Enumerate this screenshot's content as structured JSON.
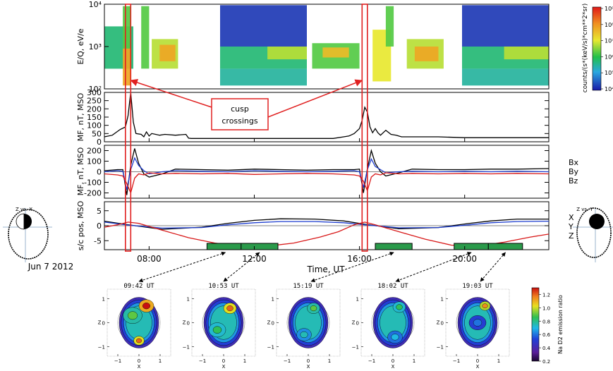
{
  "chart_data": [
    {
      "type": "heatmap",
      "ylabel": "E/Q, eV/e",
      "y_scale": "log",
      "ylim": [
        100,
        10000
      ],
      "yticks": [
        "10⁴",
        "10³",
        "10²"
      ],
      "colorbar_label": "counts/(s*(keV/s)*cm**2*sr)",
      "colorbar_scale": "log",
      "colorbar_ticks": [
        "10⁹",
        "10⁸",
        "10⁷",
        "10⁶",
        "10⁵",
        "10⁴"
      ],
      "cells": [
        {
          "t0": 6.3,
          "t1": 7.4,
          "e0": 300,
          "e1": 3000,
          "level": 0.35
        },
        {
          "t0": 7.0,
          "t1": 7.3,
          "e0": 120,
          "e1": 900,
          "level": 0.75
        },
        {
          "t0": 7.0,
          "t1": 7.3,
          "e0": 900,
          "e1": 9000,
          "level": 0.45
        },
        {
          "t0": 7.7,
          "t1": 8.0,
          "e0": 300,
          "e1": 9000,
          "level": 0.45
        },
        {
          "t0": 8.1,
          "t1": 9.1,
          "e0": 300,
          "e1": 1500,
          "level": 0.55
        },
        {
          "t0": 8.4,
          "t1": 9.0,
          "e0": 450,
          "e1": 1100,
          "level": 0.75
        },
        {
          "t0": 10.7,
          "t1": 14.0,
          "e0": 1000,
          "e1": 9500,
          "level": 0.05
        },
        {
          "t0": 10.7,
          "t1": 14.0,
          "e0": 300,
          "e1": 1000,
          "level": 0.35
        },
        {
          "t0": 10.7,
          "t1": 14.0,
          "e0": 120,
          "e1": 300,
          "level": 0.3
        },
        {
          "t0": 12.5,
          "t1": 14.0,
          "e0": 500,
          "e1": 1000,
          "level": 0.55
        },
        {
          "t0": 14.2,
          "t1": 16.0,
          "e0": 300,
          "e1": 1200,
          "level": 0.45
        },
        {
          "t0": 14.6,
          "t1": 15.6,
          "e0": 550,
          "e1": 950,
          "level": 0.7
        },
        {
          "t0": 16.5,
          "t1": 17.2,
          "e0": 150,
          "e1": 2500,
          "level": 0.6
        },
        {
          "t0": 17.0,
          "t1": 17.3,
          "e0": 1000,
          "e1": 9000,
          "level": 0.45
        },
        {
          "t0": 17.8,
          "t1": 19.2,
          "e0": 300,
          "e1": 1500,
          "level": 0.55
        },
        {
          "t0": 18.1,
          "t1": 19.0,
          "e0": 450,
          "e1": 1000,
          "level": 0.75
        },
        {
          "t0": 19.9,
          "t1": 23.2,
          "e0": 1000,
          "e1": 9500,
          "level": 0.05
        },
        {
          "t0": 19.9,
          "t1": 23.2,
          "e0": 300,
          "e1": 1000,
          "level": 0.35
        },
        {
          "t0": 19.9,
          "t1": 23.2,
          "e0": 120,
          "e1": 300,
          "level": 0.3
        },
        {
          "t0": 21.5,
          "t1": 23.2,
          "e0": 500,
          "e1": 1000,
          "level": 0.55
        }
      ],
      "annotation": {
        "text": [
          "cusp",
          "crossings"
        ],
        "targets_hours": [
          7.25,
          16.2
        ]
      },
      "cusp_windows_hours": [
        [
          7.1,
          7.3
        ],
        [
          16.1,
          16.3
        ]
      ]
    },
    {
      "type": "line",
      "ylabel": "MF, nT, MSO",
      "ylim": [
        0,
        300
      ],
      "yticks": [
        300,
        250,
        200,
        150,
        100,
        50,
        0
      ],
      "series": [
        {
          "color": "#000000",
          "x": [
            6.3,
            6.6,
            6.9,
            7.1,
            7.2,
            7.3,
            7.4,
            7.5,
            7.7,
            7.8,
            7.9,
            8.0,
            8.1,
            8.4,
            8.6,
            9.0,
            9.4,
            9.5,
            9.6,
            10.0,
            11.0,
            12.0,
            13.0,
            14.0,
            15.0,
            15.4,
            15.6,
            15.8,
            16.0,
            16.1,
            16.2,
            16.3,
            16.4,
            16.5,
            16.6,
            16.7,
            16.8,
            17.0,
            17.2,
            17.4,
            17.6,
            18.0,
            19.0,
            20.0,
            21.0,
            22.0,
            23.2
          ],
          "y": [
            30,
            40,
            75,
            90,
            160,
            300,
            120,
            50,
            45,
            30,
            60,
            35,
            50,
            40,
            45,
            40,
            45,
            22,
            20,
            20,
            20,
            20,
            20,
            20,
            20,
            30,
            35,
            50,
            80,
            130,
            210,
            180,
            90,
            55,
            80,
            55,
            40,
            70,
            45,
            40,
            30,
            30,
            30,
            25,
            25,
            25,
            25
          ]
        }
      ],
      "cusp_windows_hours": [
        [
          7.1,
          7.3
        ],
        [
          16.1,
          16.3
        ]
      ]
    },
    {
      "type": "line",
      "ylabel": "MF, nT, MSO",
      "ylim": [
        -250,
        250
      ],
      "yticks": [
        200,
        100,
        0,
        -100,
        -200
      ],
      "series": [
        {
          "name": "Bx",
          "color": "#000000",
          "x": [
            6.3,
            6.8,
            7.0,
            7.15,
            7.3,
            7.45,
            7.6,
            7.8,
            8.0,
            8.5,
            9.0,
            10.0,
            11.0,
            12.0,
            13.0,
            14.0,
            15.0,
            15.8,
            16.0,
            16.15,
            16.3,
            16.45,
            16.6,
            16.8,
            17.0,
            17.5,
            18.0,
            19.0,
            20.0,
            21.0,
            22.0,
            23.2
          ],
          "y": [
            10,
            20,
            20,
            -220,
            60,
            220,
            80,
            -20,
            -50,
            -20,
            25,
            20,
            15,
            25,
            20,
            15,
            20,
            20,
            25,
            -200,
            30,
            200,
            80,
            0,
            -40,
            -10,
            25,
            20,
            20,
            25,
            25,
            30
          ]
        },
        {
          "name": "By",
          "color": "#1f3fd0",
          "x": [
            6.3,
            6.8,
            7.0,
            7.15,
            7.3,
            7.45,
            7.6,
            7.8,
            8.0,
            8.5,
            9.0,
            10.0,
            11.0,
            12.0,
            13.0,
            14.0,
            15.0,
            15.8,
            16.0,
            16.15,
            16.3,
            16.45,
            16.6,
            16.8,
            17.0,
            17.5,
            18.0,
            19.0,
            20.0,
            21.0,
            22.0,
            23.2
          ],
          "y": [
            0,
            10,
            5,
            -170,
            20,
            130,
            60,
            10,
            -20,
            0,
            10,
            5,
            0,
            10,
            5,
            0,
            5,
            10,
            0,
            -150,
            20,
            120,
            50,
            20,
            -10,
            0,
            5,
            0,
            5,
            0,
            5,
            0
          ]
        },
        {
          "name": "Bz",
          "color": "#d81818",
          "x": [
            6.3,
            6.8,
            7.0,
            7.15,
            7.3,
            7.45,
            7.6,
            7.8,
            8.0,
            8.5,
            9.0,
            10.0,
            11.0,
            12.0,
            13.0,
            14.0,
            15.0,
            15.8,
            16.0,
            16.15,
            16.3,
            16.45,
            16.6,
            16.8,
            17.0,
            17.5,
            18.0,
            19.0,
            20.0,
            21.0,
            22.0,
            23.2
          ],
          "y": [
            -20,
            -30,
            -40,
            -110,
            -200,
            -60,
            -20,
            -30,
            -10,
            -20,
            -15,
            -20,
            -15,
            -25,
            -20,
            -15,
            -20,
            -30,
            -40,
            -90,
            -180,
            -50,
            -20,
            -30,
            -10,
            -20,
            -15,
            -20,
            -15,
            -20,
            -15,
            -20
          ]
        }
      ],
      "legend": [
        "Bx",
        "By",
        "Bz"
      ],
      "cusp_windows_hours": [
        [
          7.1,
          7.3
        ],
        [
          16.1,
          16.3
        ]
      ]
    },
    {
      "type": "line",
      "ylabel": "s/c pos, MSO",
      "xlabel": "Time, UT",
      "ylim": [
        -8,
        8
      ],
      "yticks": [
        5,
        0,
        -5
      ],
      "xticks": [
        {
          "hour": 8,
          "label": "08:00"
        },
        {
          "hour": 12,
          "label": "12:00"
        },
        {
          "hour": 16,
          "label": "16:00"
        },
        {
          "hour": 20,
          "label": "20:00"
        }
      ],
      "xlim": [
        6.3,
        23.2
      ],
      "series": [
        {
          "name": "X",
          "color": "#000000",
          "x": [
            6.3,
            7.2,
            8.5,
            10.0,
            11.0,
            12.0,
            13.0,
            14.3,
            15.4,
            16.2,
            17.5,
            19.0,
            20.2,
            21.0,
            22.0,
            23.2
          ],
          "y": [
            1.5,
            0.3,
            -1.2,
            -0.5,
            0.8,
            1.8,
            2.3,
            2.2,
            1.6,
            0.5,
            -1.0,
            -0.6,
            0.8,
            1.6,
            2.2,
            2.2
          ]
        },
        {
          "name": "Y",
          "color": "#1f3fd0",
          "x": [
            6.3,
            7.2,
            8.5,
            10.0,
            11.0,
            12.0,
            13.0,
            14.3,
            15.4,
            16.2,
            17.5,
            19.0,
            20.2,
            21.0,
            22.0,
            23.2
          ],
          "y": [
            1.2,
            0.2,
            -0.8,
            -0.6,
            0.3,
            1.0,
            1.4,
            1.4,
            1.0,
            0.3,
            -0.7,
            -0.6,
            0.3,
            1.0,
            1.4,
            1.5
          ]
        },
        {
          "name": "Z",
          "color": "#d81818",
          "x": [
            6.3,
            6.8,
            7.2,
            7.6,
            8.5,
            9.5,
            10.5,
            11.5,
            12.5,
            13.5,
            14.5,
            15.2,
            15.8,
            16.2,
            16.6,
            17.5,
            18.5,
            19.5,
            20.5,
            21.5,
            22.5,
            23.2
          ],
          "y": [
            -0.5,
            0.3,
            1.2,
            0.8,
            -1.5,
            -4.0,
            -5.8,
            -6.8,
            -6.8,
            -5.8,
            -3.8,
            -2.0,
            0.3,
            1.2,
            0.3,
            -2.0,
            -4.5,
            -6.5,
            -6.8,
            -5.5,
            -3.8,
            -2.8
          ]
        }
      ],
      "legend": [
        "X",
        "Y",
        "Z"
      ],
      "observation_bars_hours": [
        [
          10.2,
          11.5
        ],
        [
          11.5,
          12.9
        ],
        [
          16.6,
          18.0
        ],
        [
          19.6,
          20.9
        ],
        [
          20.9,
          22.2
        ]
      ],
      "cusp_windows_hours": [
        [
          7.1,
          7.3
        ],
        [
          16.1,
          16.3
        ]
      ]
    },
    {
      "type": "other",
      "date_label": "Jun 7 2012",
      "orbit_left_title": "Z vs. X",
      "orbit_right_title": "Z vs. Y"
    },
    {
      "type": "heatmap",
      "xlabel": "X",
      "ylabel": "Z",
      "xticks": [
        "−1",
        "0",
        "1"
      ],
      "yticks": [
        "1",
        "0",
        "−1"
      ],
      "colorbar_label": "Na D2 emission ratio",
      "colorbar_ticks": [
        "1.2",
        "1.0",
        "0.8",
        "0.6",
        "0.4",
        "0.2"
      ],
      "colorbar_range": [
        0.2,
        1.3
      ],
      "panels": [
        {
          "time_label": "09:42 UT",
          "link_hour": 10.9,
          "features": [
            {
              "x": 0.35,
              "z": 0.7,
              "r": 0.35,
              "value": 1.3
            },
            {
              "x": 0.0,
              "z": -0.75,
              "r": 0.25,
              "value": 1.2
            },
            {
              "x": -0.3,
              "z": 0.3,
              "r": 0.45,
              "value": 0.9
            }
          ]
        },
        {
          "time_label": "10:53 UT",
          "link_hour": 12.2,
          "features": [
            {
              "x": 0.3,
              "z": 0.6,
              "r": 0.3,
              "value": 1.2
            },
            {
              "x": -0.3,
              "z": -0.3,
              "r": 0.4,
              "value": 0.85
            }
          ]
        },
        {
          "time_label": "15:19 UT",
          "link_hour": 17.3,
          "features": [
            {
              "x": 0.25,
              "z": 0.6,
              "r": 0.3,
              "value": 0.9
            },
            {
              "x": -0.2,
              "z": -0.5,
              "r": 0.35,
              "value": 0.75
            }
          ]
        },
        {
          "time_label": "18:02 UT",
          "link_hour": 20.25,
          "features": [
            {
              "x": 0.3,
              "z": 0.65,
              "r": 0.3,
              "value": 0.85
            },
            {
              "x": 0.1,
              "z": -0.6,
              "r": 0.35,
              "value": 0.7
            }
          ]
        },
        {
          "time_label": "19:03 UT",
          "link_hour": 21.55,
          "features": [
            {
              "x": 0.35,
              "z": 0.7,
              "r": 0.25,
              "value": 1.15
            },
            {
              "x": 0.0,
              "z": 0.0,
              "r": 0.4,
              "value": 0.6
            }
          ]
        }
      ]
    }
  ]
}
